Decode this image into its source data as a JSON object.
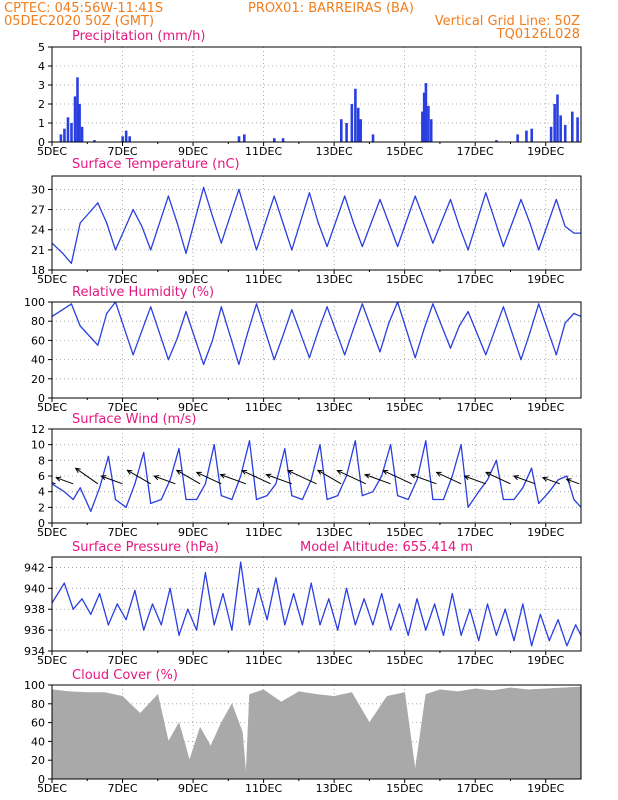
{
  "header": {
    "line1_left": "CPTEC:   045:56W-11:41S",
    "line1_right": "PROX01: BARREIRAS (BA)",
    "line2_left": "05DEC2020 50Z (GMT)",
    "line2_right": "Vertical Grid Line: 50Z",
    "line3_right": "TQ0126L028"
  },
  "colors": {
    "header": "#f07e1e",
    "panel_title": "#e5177f",
    "series": "#2a3fe0",
    "cloud": "#a9a9a9"
  },
  "x_tick_labels": [
    "5DEC",
    "7DEC",
    "9DEC",
    "11DEC",
    "13DEC",
    "15DEC",
    "17DEC",
    "19DEC"
  ],
  "panels": {
    "precip": {
      "title": "Precipitation (mm/h)",
      "yticks": [
        "0",
        "1",
        "2",
        "3",
        "4",
        "5"
      ]
    },
    "temp": {
      "title": "Surface Temperature (nC)",
      "yticks": [
        "18",
        "21",
        "24",
        "27",
        "30"
      ]
    },
    "rh": {
      "title": "Relative Humidity (%)",
      "yticks": [
        "0",
        "20",
        "40",
        "60",
        "80",
        "100"
      ]
    },
    "wind": {
      "title": "Surface Wind (m/s)",
      "yticks": [
        "0",
        "2",
        "4",
        "6",
        "8",
        "10",
        "12"
      ]
    },
    "press": {
      "title": "Surface Pressure (hPa)",
      "altitude": "Model Altitude: 655.414 m",
      "yticks": [
        "934",
        "936",
        "938",
        "940",
        "942"
      ]
    },
    "cloud": {
      "title": "Cloud Cover (%)",
      "yticks": [
        "0",
        "20",
        "40",
        "60",
        "80",
        "100"
      ]
    }
  },
  "chart_data": [
    {
      "type": "bar",
      "title": "Precipitation (mm/h)",
      "x_range_days": [
        5,
        20
      ],
      "ylim": [
        0,
        5
      ],
      "events": [
        {
          "day": 5.25,
          "value": 0.4
        },
        {
          "day": 5.35,
          "value": 0.7
        },
        {
          "day": 5.45,
          "value": 1.3
        },
        {
          "day": 5.55,
          "value": 1.0
        },
        {
          "day": 5.65,
          "value": 2.4
        },
        {
          "day": 5.72,
          "value": 3.4
        },
        {
          "day": 5.78,
          "value": 2.0
        },
        {
          "day": 5.85,
          "value": 0.8
        },
        {
          "day": 6.2,
          "value": 0.1
        },
        {
          "day": 7.0,
          "value": 0.3
        },
        {
          "day": 7.1,
          "value": 0.6
        },
        {
          "day": 7.2,
          "value": 0.3
        },
        {
          "day": 10.3,
          "value": 0.3
        },
        {
          "day": 10.45,
          "value": 0.4
        },
        {
          "day": 11.3,
          "value": 0.2
        },
        {
          "day": 11.55,
          "value": 0.2
        },
        {
          "day": 13.2,
          "value": 1.2
        },
        {
          "day": 13.35,
          "value": 1.0
        },
        {
          "day": 13.5,
          "value": 2.0
        },
        {
          "day": 13.6,
          "value": 2.8
        },
        {
          "day": 13.68,
          "value": 1.8
        },
        {
          "day": 13.75,
          "value": 1.2
        },
        {
          "day": 14.1,
          "value": 0.4
        },
        {
          "day": 15.5,
          "value": 1.6
        },
        {
          "day": 15.55,
          "value": 2.6
        },
        {
          "day": 15.6,
          "value": 3.1
        },
        {
          "day": 15.67,
          "value": 1.9
        },
        {
          "day": 15.75,
          "value": 1.2
        },
        {
          "day": 17.6,
          "value": 0.1
        },
        {
          "day": 18.2,
          "value": 0.4
        },
        {
          "day": 18.45,
          "value": 0.6
        },
        {
          "day": 18.6,
          "value": 0.7
        },
        {
          "day": 19.15,
          "value": 0.8
        },
        {
          "day": 19.25,
          "value": 2.0
        },
        {
          "day": 19.33,
          "value": 2.5
        },
        {
          "day": 19.42,
          "value": 1.4
        },
        {
          "day": 19.55,
          "value": 0.9
        },
        {
          "day": 19.75,
          "value": 1.6
        },
        {
          "day": 19.9,
          "value": 1.3
        }
      ]
    },
    {
      "type": "line",
      "title": "Surface Temperature (nC)",
      "x_range_days": [
        5,
        20
      ],
      "ylim": [
        18,
        32
      ],
      "x": [
        5.0,
        5.3,
        5.55,
        5.8,
        6.3,
        6.55,
        6.8,
        7.3,
        7.55,
        7.8,
        8.3,
        8.55,
        8.8,
        9.3,
        9.55,
        9.8,
        10.3,
        10.55,
        10.8,
        11.3,
        11.55,
        11.8,
        12.3,
        12.55,
        12.8,
        13.3,
        13.55,
        13.8,
        14.3,
        14.55,
        14.8,
        15.3,
        15.55,
        15.8,
        16.3,
        16.55,
        16.8,
        17.3,
        17.55,
        17.8,
        18.3,
        18.55,
        18.8,
        19.3,
        19.55,
        19.8,
        20.0
      ],
      "y": [
        22.0,
        20.5,
        19.0,
        25.0,
        28.0,
        25.0,
        21.0,
        27.0,
        24.5,
        21.0,
        29.0,
        25.0,
        20.5,
        30.3,
        26.0,
        22.0,
        30.0,
        25.5,
        21.0,
        29.0,
        25.0,
        21.0,
        29.5,
        25.0,
        21.5,
        29.0,
        25.0,
        21.5,
        28.5,
        25.0,
        21.5,
        29.0,
        25.5,
        22.0,
        28.5,
        24.5,
        21.0,
        29.5,
        25.5,
        21.5,
        28.5,
        25.0,
        21.0,
        28.5,
        24.5,
        23.5,
        23.5
      ]
    },
    {
      "type": "line",
      "title": "Relative Humidity (%)",
      "x_range_days": [
        5,
        20
      ],
      "ylim": [
        0,
        100
      ],
      "x": [
        5.0,
        5.3,
        5.55,
        5.8,
        6.3,
        6.55,
        6.8,
        7.3,
        7.55,
        7.8,
        8.3,
        8.55,
        8.8,
        9.3,
        9.55,
        9.8,
        10.3,
        10.55,
        10.8,
        11.3,
        11.55,
        11.8,
        12.3,
        12.55,
        12.8,
        13.3,
        13.55,
        13.8,
        14.3,
        14.55,
        14.8,
        15.3,
        15.55,
        15.8,
        16.3,
        16.55,
        16.8,
        17.3,
        17.55,
        17.8,
        18.3,
        18.55,
        18.8,
        19.3,
        19.55,
        19.8,
        20.0
      ],
      "y": [
        85,
        92,
        98,
        75,
        55,
        88,
        100,
        45,
        70,
        95,
        40,
        62,
        90,
        35,
        60,
        95,
        35,
        68,
        98,
        40,
        65,
        92,
        42,
        70,
        95,
        45,
        72,
        98,
        48,
        78,
        100,
        42,
        72,
        98,
        52,
        75,
        90,
        45,
        70,
        95,
        40,
        68,
        98,
        45,
        78,
        88,
        85
      ]
    },
    {
      "type": "line",
      "title": "Surface Wind (m/s)",
      "x_range_days": [
        5,
        20
      ],
      "ylim": [
        0,
        12
      ],
      "x": [
        5.0,
        5.35,
        5.6,
        5.8,
        6.1,
        6.35,
        6.6,
        6.8,
        7.1,
        7.35,
        7.6,
        7.8,
        8.1,
        8.35,
        8.6,
        8.8,
        9.1,
        9.35,
        9.6,
        9.8,
        10.1,
        10.35,
        10.6,
        10.8,
        11.1,
        11.35,
        11.6,
        11.8,
        12.1,
        12.35,
        12.6,
        12.8,
        13.1,
        13.35,
        13.6,
        13.8,
        14.1,
        14.35,
        14.6,
        14.8,
        15.1,
        15.35,
        15.6,
        15.8,
        16.1,
        16.35,
        16.6,
        16.8,
        17.1,
        17.35,
        17.6,
        17.8,
        18.1,
        18.35,
        18.6,
        18.8,
        19.1,
        19.35,
        19.6,
        19.8,
        20.0
      ],
      "y": [
        5.0,
        4.0,
        3.0,
        4.5,
        1.5,
        4.5,
        8.5,
        3.0,
        2.0,
        5.0,
        9.0,
        2.5,
        3.0,
        5.5,
        9.5,
        3.0,
        3.0,
        5.0,
        10.0,
        3.5,
        3.0,
        6.0,
        10.5,
        3.0,
        3.5,
        5.0,
        9.5,
        3.5,
        3.0,
        5.5,
        10.0,
        3.0,
        3.5,
        6.0,
        10.5,
        3.5,
        4.0,
        6.0,
        10.0,
        3.5,
        3.0,
        5.5,
        10.5,
        3.0,
        3.0,
        6.0,
        10.0,
        2.0,
        4.0,
        5.5,
        8.0,
        3.0,
        3.0,
        4.5,
        7.0,
        2.5,
        4.0,
        5.5,
        6.0,
        3.0,
        2.0
      ],
      "vectors": [
        {
          "day": 5.1,
          "dir_deg": 200,
          "mag": 5
        },
        {
          "day": 5.6,
          "dir_deg": 200,
          "mag": 4
        },
        {
          "day": 6.3,
          "dir_deg": 215,
          "mag": 6
        },
        {
          "day": 7.0,
          "dir_deg": 200,
          "mag": 5
        },
        {
          "day": 7.8,
          "dir_deg": 210,
          "mag": 6
        },
        {
          "day": 8.5,
          "dir_deg": 200,
          "mag": 5
        },
        {
          "day": 9.2,
          "dir_deg": 210,
          "mag": 6
        },
        {
          "day": 9.8,
          "dir_deg": 205,
          "mag": 6
        },
        {
          "day": 10.5,
          "dir_deg": 200,
          "mag": 6
        },
        {
          "day": 11.2,
          "dir_deg": 205,
          "mag": 7
        },
        {
          "day": 11.8,
          "dir_deg": 200,
          "mag": 6
        },
        {
          "day": 12.5,
          "dir_deg": 205,
          "mag": 7
        },
        {
          "day": 13.2,
          "dir_deg": 210,
          "mag": 6
        },
        {
          "day": 13.9,
          "dir_deg": 205,
          "mag": 7
        },
        {
          "day": 14.6,
          "dir_deg": 200,
          "mag": 6
        },
        {
          "day": 15.2,
          "dir_deg": 205,
          "mag": 7
        },
        {
          "day": 15.9,
          "dir_deg": 200,
          "mag": 6
        },
        {
          "day": 16.6,
          "dir_deg": 205,
          "mag": 6
        },
        {
          "day": 17.3,
          "dir_deg": 200,
          "mag": 5
        },
        {
          "day": 18.0,
          "dir_deg": 205,
          "mag": 6
        },
        {
          "day": 18.7,
          "dir_deg": 200,
          "mag": 5
        },
        {
          "day": 19.4,
          "dir_deg": 200,
          "mag": 4
        },
        {
          "day": 19.95,
          "dir_deg": 200,
          "mag": 3
        }
      ]
    },
    {
      "type": "line",
      "title": "Surface Pressure (hPa)",
      "x_range_days": [
        5,
        20
      ],
      "ylim": [
        934,
        943
      ],
      "x": [
        5.0,
        5.35,
        5.6,
        5.85,
        6.1,
        6.35,
        6.6,
        6.85,
        7.1,
        7.35,
        7.6,
        7.85,
        8.1,
        8.35,
        8.6,
        8.85,
        9.1,
        9.35,
        9.6,
        9.85,
        10.1,
        10.35,
        10.6,
        10.85,
        11.1,
        11.35,
        11.6,
        11.85,
        12.1,
        12.35,
        12.6,
        12.85,
        13.1,
        13.35,
        13.6,
        13.85,
        14.1,
        14.35,
        14.6,
        14.85,
        15.1,
        15.35,
        15.6,
        15.85,
        16.1,
        16.35,
        16.6,
        16.85,
        17.1,
        17.35,
        17.6,
        17.85,
        18.1,
        18.35,
        18.6,
        18.85,
        19.1,
        19.35,
        19.6,
        19.85,
        20.0
      ],
      "y": [
        938.6,
        940.5,
        938.0,
        939.0,
        937.5,
        939.5,
        936.5,
        938.5,
        937.0,
        939.8,
        936.0,
        938.5,
        936.5,
        940.0,
        935.5,
        938.0,
        936.0,
        941.5,
        936.5,
        939.5,
        936.0,
        942.5,
        936.5,
        940.0,
        937.0,
        941.0,
        936.5,
        939.5,
        936.5,
        940.5,
        936.5,
        939.0,
        936.0,
        940.0,
        936.5,
        939.0,
        936.5,
        939.5,
        936.0,
        938.5,
        935.5,
        939.0,
        936.0,
        938.5,
        935.5,
        939.5,
        935.5,
        938.0,
        935.0,
        938.5,
        935.5,
        938.0,
        935.0,
        938.5,
        934.5,
        937.5,
        935.0,
        937.0,
        934.5,
        936.5,
        935.5
      ]
    },
    {
      "type": "area",
      "title": "Cloud Cover (%)",
      "x_range_days": [
        5,
        20
      ],
      "ylim": [
        0,
        100
      ],
      "x": [
        5.0,
        5.5,
        6.0,
        6.5,
        7.0,
        7.5,
        8.0,
        8.3,
        8.6,
        8.9,
        9.2,
        9.5,
        9.8,
        10.1,
        10.4,
        10.5,
        10.6,
        11.0,
        11.5,
        12.0,
        12.5,
        13.0,
        13.5,
        14.0,
        14.5,
        15.0,
        15.3,
        15.6,
        16.0,
        16.5,
        17.0,
        17.5,
        18.0,
        18.5,
        19.0,
        19.5,
        20.0
      ],
      "y": [
        95,
        93,
        92,
        92,
        88,
        70,
        90,
        40,
        60,
        20,
        55,
        35,
        60,
        80,
        50,
        5,
        90,
        95,
        82,
        93,
        90,
        88,
        92,
        60,
        88,
        92,
        10,
        90,
        95,
        93,
        96,
        94,
        97,
        95,
        96,
        97,
        98
      ]
    }
  ]
}
